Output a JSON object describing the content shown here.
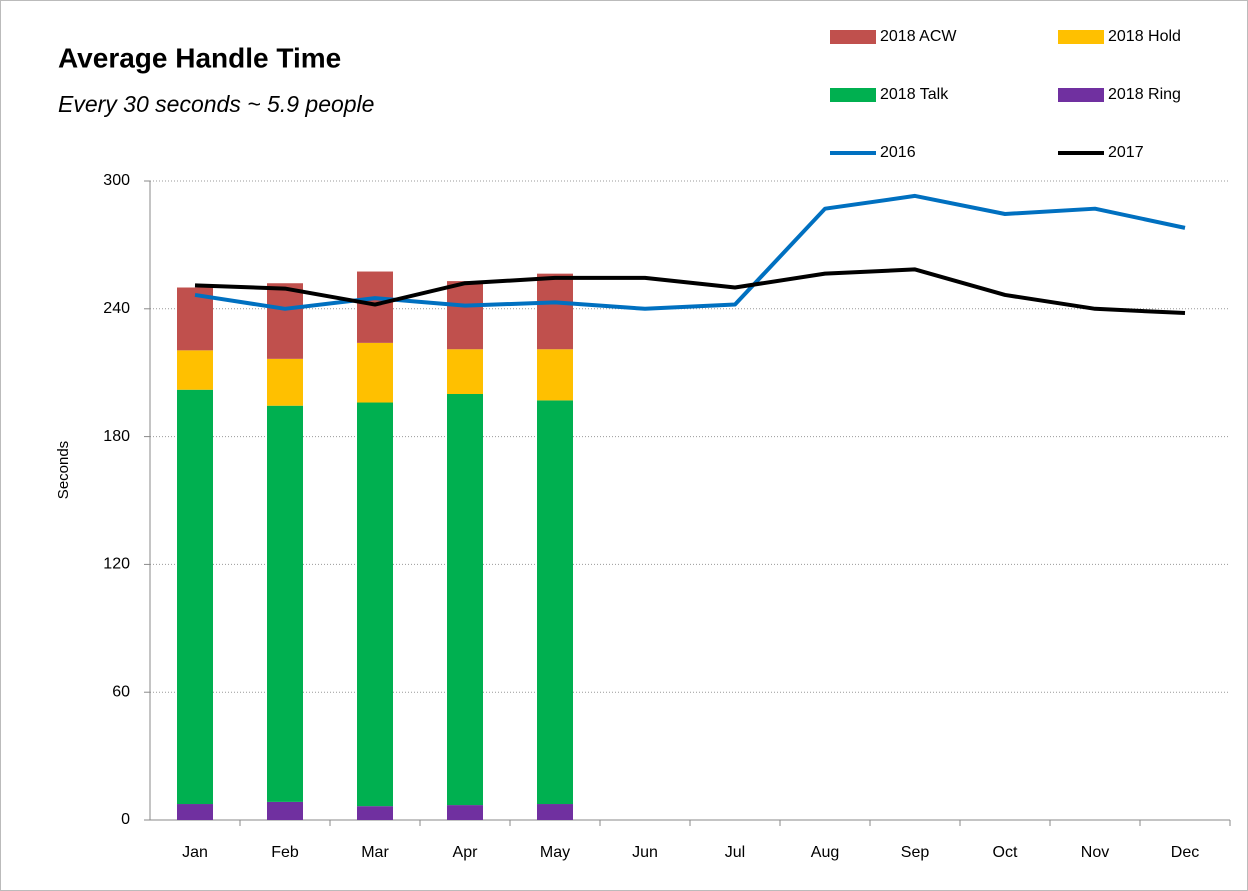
{
  "chart_data": {
    "type": "combo",
    "title": "Average Handle Time",
    "subtitle": "Every 30 seconds ~ 5.9 people",
    "y_label": "Seconds",
    "categories": [
      "Jan",
      "Feb",
      "Mar",
      "Apr",
      "May",
      "Jun",
      "Jul",
      "Aug",
      "Sep",
      "Oct",
      "Nov",
      "Dec"
    ],
    "series": [
      {
        "name": "2018 ACW",
        "type": "bar",
        "color": "#c0504d",
        "values": [
          29.5,
          35.5,
          33.5,
          32,
          35.5,
          null,
          null,
          null,
          null,
          null,
          null,
          null
        ]
      },
      {
        "name": "2018 Hold",
        "type": "bar",
        "color": "#ffc000",
        "values": [
          18.5,
          22,
          28,
          21,
          24,
          null,
          null,
          null,
          null,
          null,
          null,
          null
        ]
      },
      {
        "name": "2018 Talk",
        "type": "bar",
        "color": "#00b050",
        "values": [
          194.5,
          186,
          189.5,
          193,
          189.5,
          null,
          null,
          null,
          null,
          null,
          null,
          null
        ]
      },
      {
        "name": "2018 Ring",
        "type": "bar",
        "color": "#7030a0",
        "values": [
          7.5,
          8.5,
          6.5,
          7,
          7.5,
          null,
          null,
          null,
          null,
          null,
          null,
          null
        ]
      },
      {
        "name": "2016",
        "type": "line",
        "color": "#0070c0",
        "values": [
          246.5,
          240,
          245,
          241.5,
          243,
          240,
          242,
          287,
          293,
          284.5,
          287,
          278
        ]
      },
      {
        "name": "2017",
        "type": "line",
        "color": "#000000",
        "values": [
          251,
          249.5,
          242,
          252,
          254.5,
          254.5,
          250,
          256.5,
          258.5,
          246.5,
          240,
          238
        ]
      }
    ],
    "ylim": [
      0,
      300
    ],
    "yticks": [
      0,
      60,
      120,
      180,
      240,
      300
    ],
    "grid": true
  }
}
